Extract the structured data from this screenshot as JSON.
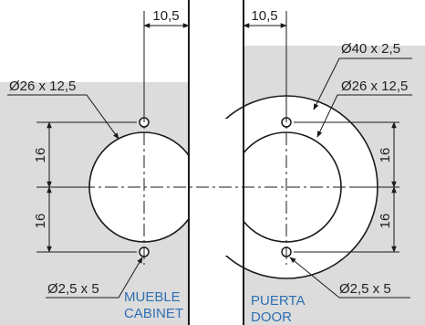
{
  "colors": {
    "line": "#1a1a1a",
    "panel": "#dcdcdc",
    "accent_text": "#2f6fb2"
  },
  "dims": {
    "left_top_width": "10,5",
    "right_top_width": "10,5",
    "left_hinge_bore": "Ø26 x 12,5",
    "right_hinge_bore": "Ø26 x 12,5",
    "right_outer_bore": "Ø40 x 2,5",
    "left_vertical_upper": "16",
    "left_vertical_lower": "16",
    "right_vertical_upper": "16",
    "right_vertical_lower": "16",
    "left_small_hole": "Ø2,5 x 5",
    "right_small_hole": "Ø2,5 x 5"
  },
  "labels": {
    "cabinet_es": "MUEBLE",
    "cabinet_en": "CABINET",
    "door_es": "PUERTA",
    "door_en": "DOOR"
  }
}
